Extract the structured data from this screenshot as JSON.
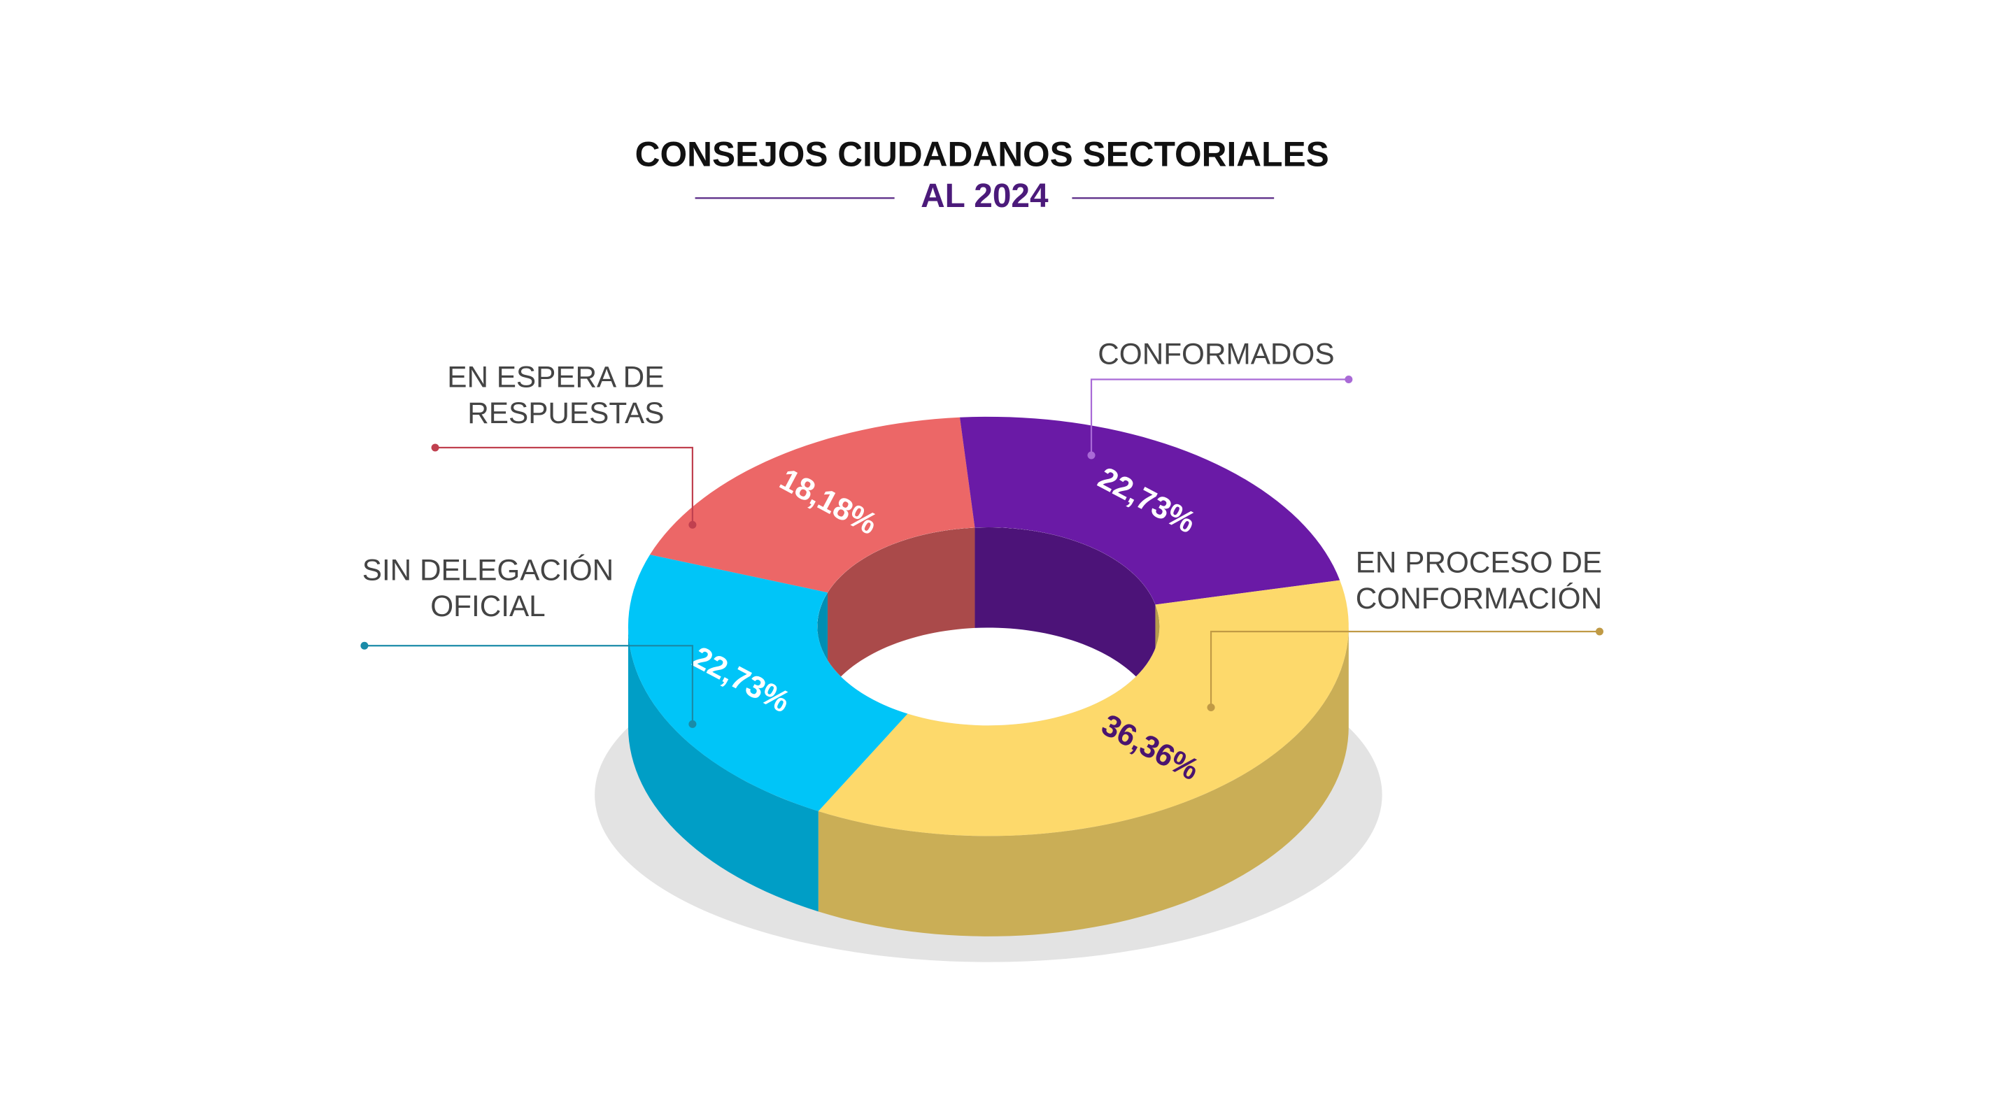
{
  "chart_data": {
    "type": "donut3d",
    "title": "CONSEJOS CIUDADANOS SECTORIALES",
    "subtitle": "AL 2024",
    "categories": [
      "EN ESPERA DE RESPUESTAS",
      "CONFORMADOS",
      "EN PROCESO DE CONFORMACIÓN",
      "SIN DELEGACIÓN OFICIAL"
    ],
    "values": [
      18.18,
      22.73,
      36.36,
      22.73
    ],
    "value_labels": [
      "18,18%",
      "22,73%",
      "36,36%",
      "22,73%"
    ],
    "colors": [
      "#ec6767",
      "#6a1aa6",
      "#fdd96b",
      "#00c5f8"
    ]
  }
}
